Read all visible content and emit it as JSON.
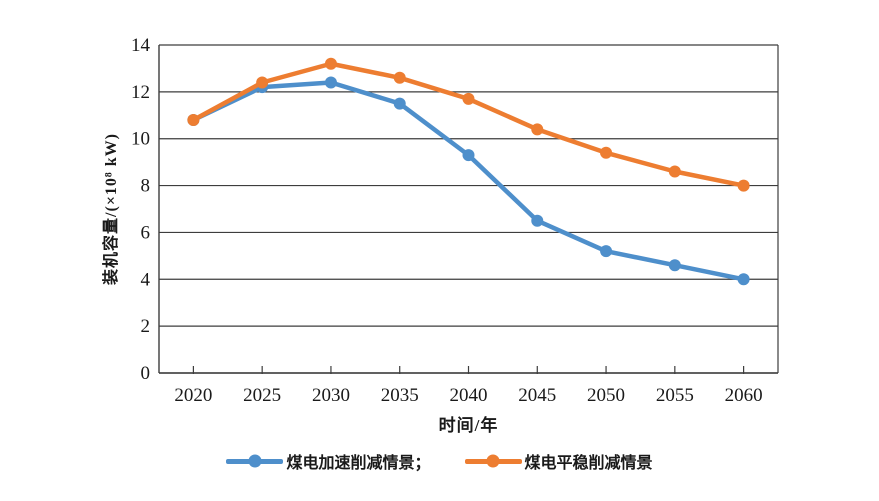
{
  "page": {
    "background": "#ffffff"
  },
  "colors": {
    "grid": "#3d3d3d",
    "axis": "#3d3d3d",
    "text": "#1a1a1a",
    "series_blue": "#4E8FCB",
    "series_orange": "#ED7D31"
  },
  "chart_data": {
    "type": "line",
    "title": "",
    "xlabel": "时间/年",
    "ylabel": "装机容量/(×10⁸ kW)",
    "x_categories": [
      "2020",
      "2025",
      "2030",
      "2035",
      "2040",
      "2045",
      "2050",
      "2055",
      "2060"
    ],
    "ylim": [
      0,
      14
    ],
    "ytick_step": 2,
    "grid": "horizontal-only",
    "legend_position": "bottom",
    "marker": "circle",
    "series": [
      {
        "key": "accelerated-reduction",
        "name": "煤电加速削减情景",
        "legend_label": "煤电加速削减情景；",
        "color": "#4E8FCB",
        "values": [
          10.8,
          12.2,
          12.4,
          11.5,
          9.3,
          6.5,
          5.2,
          4.6,
          4.0
        ]
      },
      {
        "key": "steady-reduction",
        "name": "煤电平稳削减情景",
        "legend_label": "煤电平稳削减情景",
        "color": "#ED7D31",
        "values": [
          10.8,
          12.4,
          13.2,
          12.6,
          11.7,
          10.4,
          9.4,
          8.6,
          8.0
        ]
      }
    ]
  }
}
